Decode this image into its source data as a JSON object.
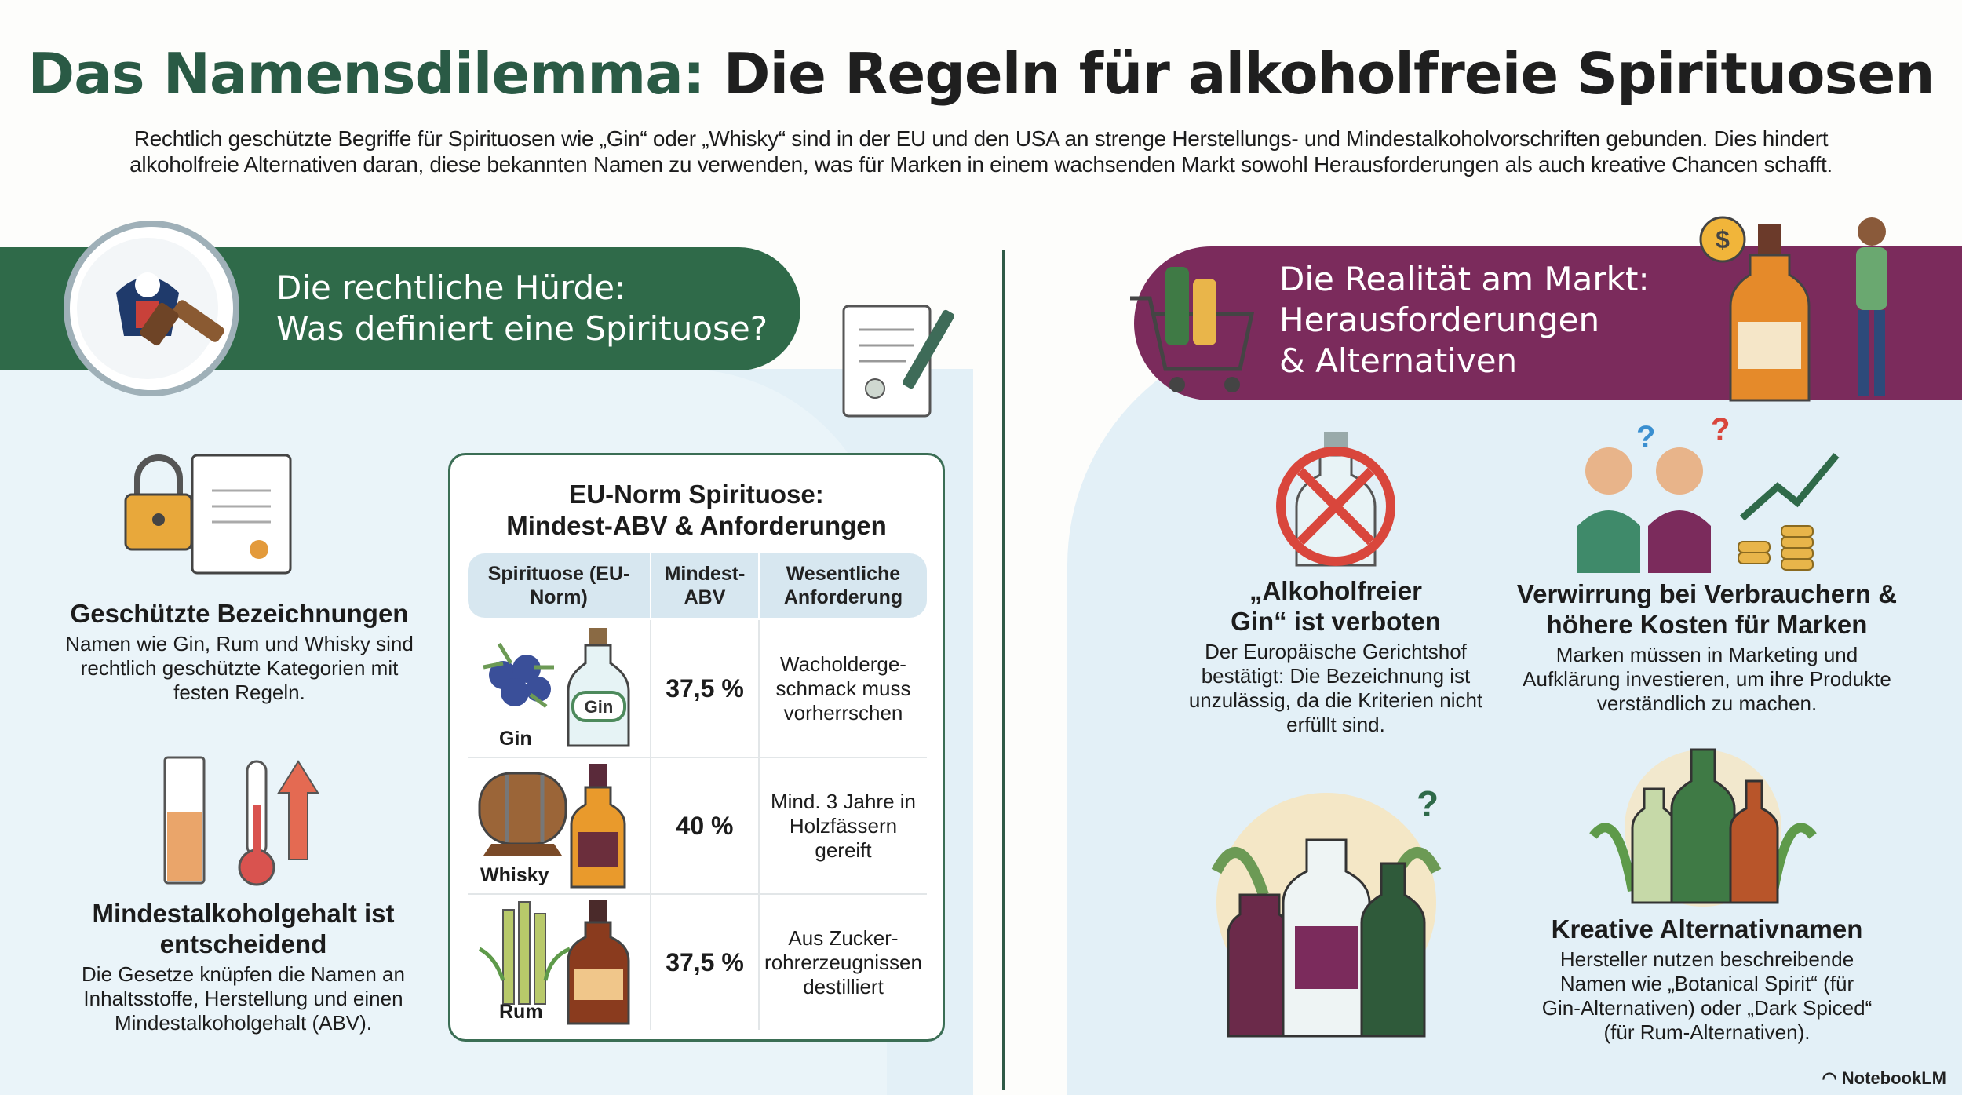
{
  "title": {
    "highlight": "Das Namensdilemma:",
    "rest": " Die Regeln für alkoholfreie Spirituosen"
  },
  "intro": "Rechtlich geschützte Begriffe für Spirituosen wie „Gin“ oder „Whisky“ sind in der EU und den USA an strenge Herstellungs- und Mindestalkoholvorschriften gebunden. Dies hindert alkoholfreie Alternativen daran, diese bekannten Namen zu verwenden, was für Marken in einem wachsenden Markt sowohl Herausforderungen als auch kreative Chancen schafft.",
  "left": {
    "banner": [
      "Die rechtliche Hürde:",
      "Was definiert eine Spirituose?"
    ],
    "features": [
      {
        "heading": "Geschützte Bezeichnungen",
        "text": "Namen wie Gin, Rum und Whisky sind rechtlich geschützte Kategorien mit festen Regeln."
      },
      {
        "heading": "Mindestalkoholgehalt ist entscheidend",
        "text": "Die Gesetze knüpfen die Namen an Inhaltsstoffe, Herstellung und einen Mindestalkoholgehalt (ABV)."
      }
    ],
    "table": {
      "title": [
        "EU-Norm Spirituose:",
        "Mindest-ABV & Anforderungen"
      ],
      "headers": [
        "Spirituose (EU-Norm)",
        "Mindest-ABV",
        "Wesentliche Anforderung"
      ],
      "rows": [
        {
          "name": "Gin",
          "bottle_label": "Gin",
          "abv": "37,5 %",
          "requirement": "Wacholderge-schmack muss vorherrschen"
        },
        {
          "name": "Whisky",
          "abv": "40 %",
          "requirement": "Mind. 3 Jahre in Holzfässern gereift"
        },
        {
          "name": "Rum",
          "abv": "37,5 %",
          "requirement": "Aus Zucker-rohrerzeugnissen destilliert"
        }
      ]
    }
  },
  "right": {
    "banner": [
      "Die Realität am Markt:",
      "Herausforderungen",
      "& Alternativen"
    ],
    "features": [
      {
        "heading": "„Alkoholfreier Gin“ ist verboten",
        "text": "Der Europäische Gerichtshof bestätigt: Die Bezeichnung ist unzulässig, da die Kriterien nicht erfüllt sind."
      },
      {
        "heading": "Verwirrung bei Verbrauchern & höhere Kosten für Marken",
        "text": "Marken müssen in Marketing und Aufklärung investieren, um ihre Produkte verständlich zu machen."
      },
      {
        "heading": "Kreative Alternativnamen",
        "text": "Hersteller nutzen beschreibende Namen wie „Botanical Spirit“ (für Gin-Alternativen) oder „Dark Spiced“ (für Rum-Alternativen)."
      }
    ]
  },
  "branding": "NotebookLM",
  "colors": {
    "green": "#2f6a49",
    "purple": "#7b2b5c",
    "panel": "#e3f0f7"
  }
}
